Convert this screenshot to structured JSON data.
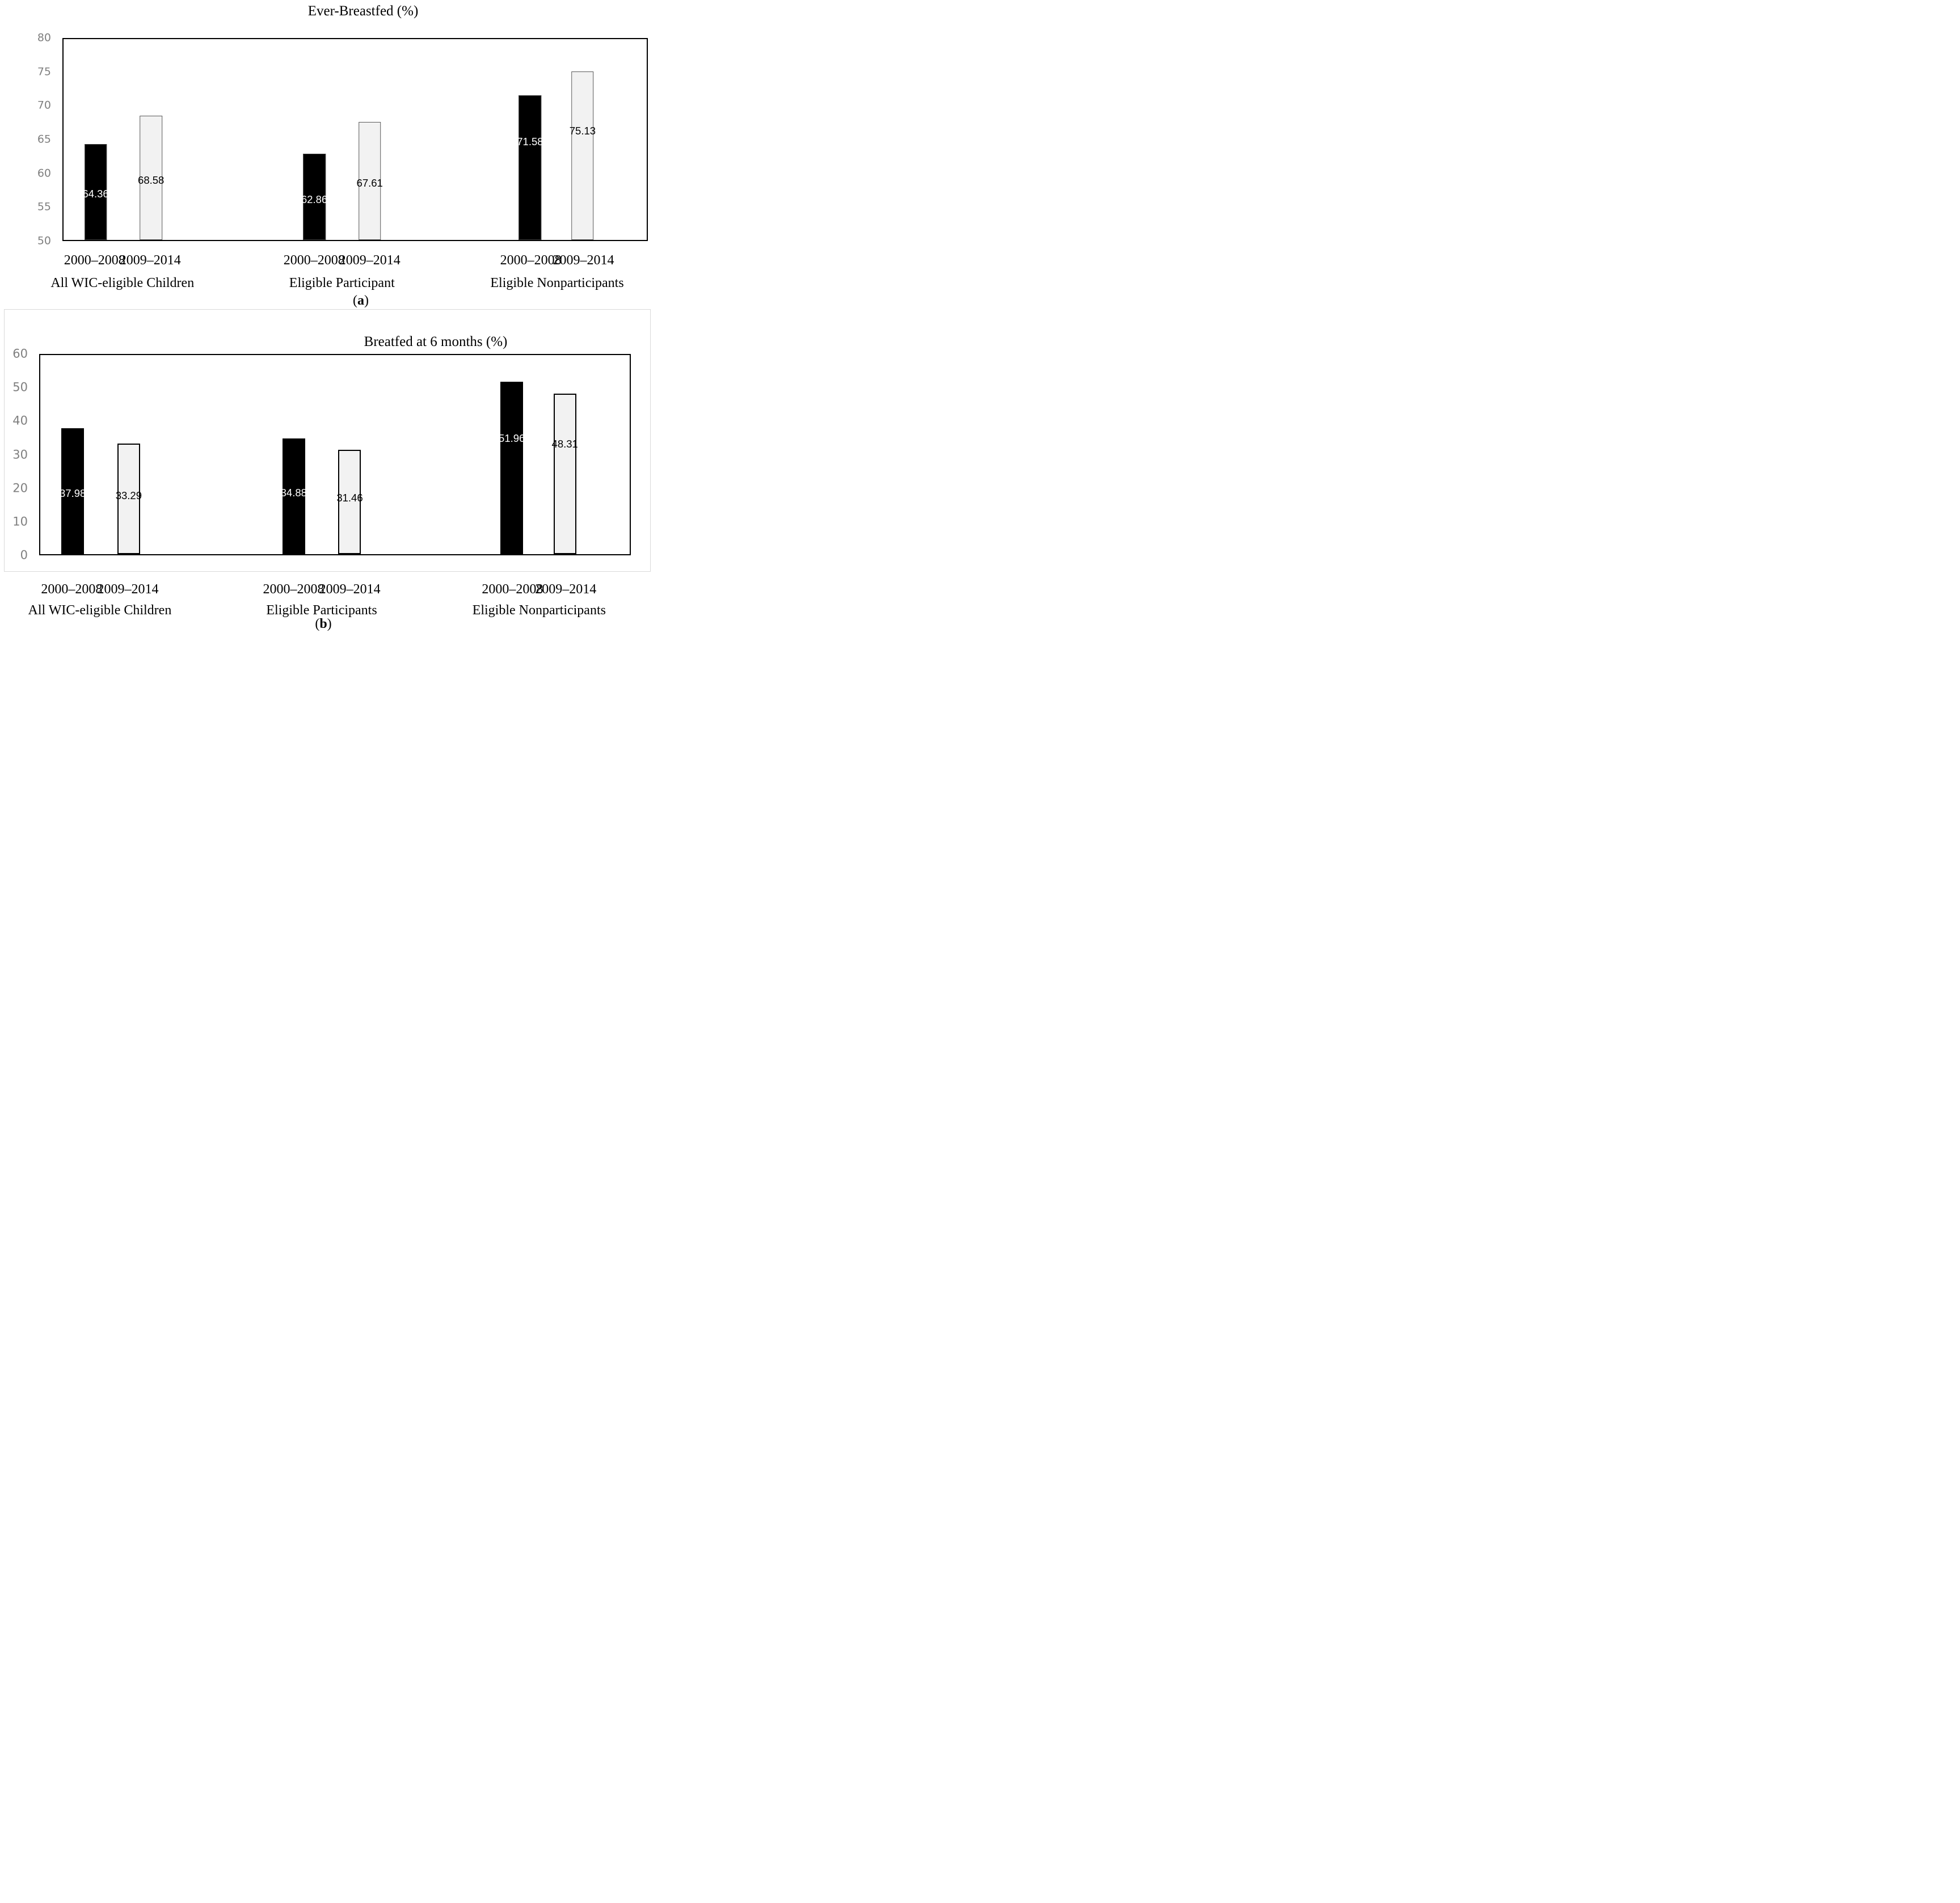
{
  "chart_data": [
    {
      "type": "bar",
      "panel": "a",
      "title": "Ever-Breastfed (%)",
      "caption_open": "(",
      "caption_letter": "a",
      "caption_close": ")",
      "ylim": [
        50,
        80
      ],
      "yticks": [
        80,
        75,
        70,
        65,
        60,
        55,
        50
      ],
      "grid": false,
      "legend": "none",
      "axis_label_color": "#7f7f7f",
      "frame_color": "#000000",
      "group_labels": [
        "All WIC-eligible Children",
        "Eligible Participant",
        "Eligible Nonparticipants"
      ],
      "series": [
        {
          "name": "2000–2008",
          "values": [
            64.36,
            62.86,
            71.58
          ],
          "fill": "#000000",
          "border": "#3d3d3d",
          "border_px": 1.7,
          "label_color": "#ffffff"
        },
        {
          "name": "2009–2014",
          "values": [
            68.58,
            67.61,
            75.13
          ],
          "fill": "#f2f2f2",
          "border": "#595959",
          "border_px": 1.7,
          "label_color": "#000000"
        }
      ],
      "bar_value_labels": [
        "64.36",
        "68.58",
        "62.86",
        "67.61",
        "71.58",
        "75.13"
      ],
      "value_label_decimals": 2
    },
    {
      "type": "bar",
      "panel": "b",
      "title": "Breatfed at 6 months (%)",
      "caption_open": "(",
      "caption_letter": "b",
      "caption_close": ")",
      "ylim": [
        0,
        60
      ],
      "yticks": [
        60,
        50,
        40,
        30,
        20,
        10,
        0
      ],
      "grid": false,
      "legend": "none",
      "axis_label_color": "#7f7f7f",
      "frame_color": "#000000",
      "panel_box_color": "#d9d9d9",
      "group_labels": [
        "All WIC-eligible Children",
        "Eligible Participants",
        "Eligible Nonparticipants"
      ],
      "series": [
        {
          "name": "2000–2008",
          "values": [
            37.98,
            34.88,
            51.96
          ],
          "fill": "#000000",
          "border": "#000000",
          "border_px": 0,
          "label_color": "#ffffff"
        },
        {
          "name": "2009–2014",
          "values": [
            33.29,
            31.46,
            48.31
          ],
          "fill": "#f2f2f2",
          "border": "#000000",
          "border_px": 2,
          "label_color": "#000000"
        }
      ],
      "bar_value_labels": [
        "37.98",
        "33.29",
        "34.88",
        "31.46",
        "51.96",
        "48.31"
      ],
      "value_label_decimals": 2
    }
  ]
}
